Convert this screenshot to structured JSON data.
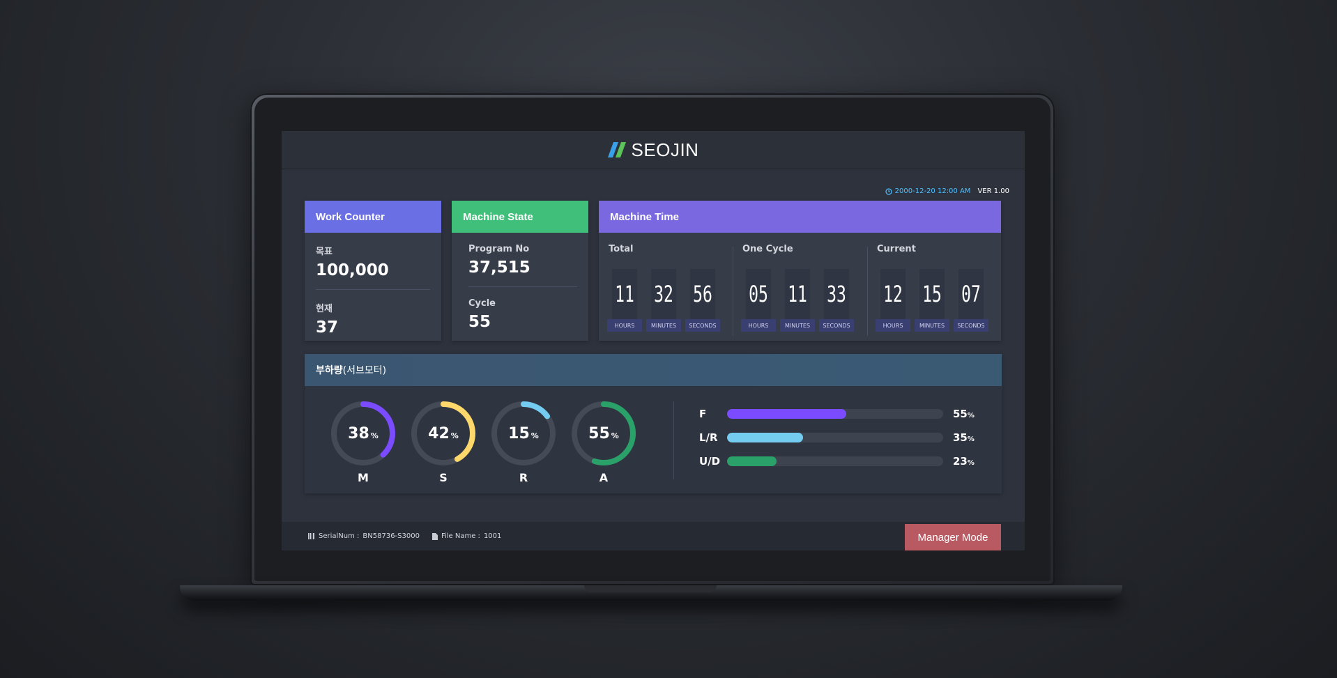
{
  "app": {
    "title": "SEOJIN"
  },
  "info": {
    "datetime": "2000-12-20  12:00 AM",
    "version": "VER 1.00"
  },
  "work_counter": {
    "title": "Work Counter",
    "target_label": "목표",
    "target_value": "100,000",
    "current_label": "현재",
    "current_value": "37"
  },
  "machine_state": {
    "title": "Machine State",
    "program_label": "Program No",
    "program_value": "37,515",
    "cycle_label": "Cycle",
    "cycle_value": "55"
  },
  "machine_time": {
    "title": "Machine Time",
    "groups": [
      {
        "label": "Total",
        "hours": "11",
        "minutes": "32",
        "seconds": "56"
      },
      {
        "label": "One Cycle",
        "hours": "05",
        "minutes": "11",
        "seconds": "33"
      },
      {
        "label": "Current",
        "hours": "12",
        "minutes": "15",
        "seconds": "07"
      }
    ],
    "units": {
      "hours": "HOURS",
      "minutes": "MINUTES",
      "seconds": "SECONDS"
    }
  },
  "load": {
    "title": "부하량",
    "subtitle": "(서브모터)",
    "gauges": [
      {
        "name": "M",
        "value": "38",
        "percent": 38,
        "color": "#7b4cff"
      },
      {
        "name": "S",
        "value": "42",
        "percent": 42,
        "color": "#ffd86b"
      },
      {
        "name": "R",
        "value": "15",
        "percent": 15,
        "color": "#74cdf0"
      },
      {
        "name": "A",
        "value": "55",
        "percent": 55,
        "color": "#2aa168"
      }
    ],
    "bars": [
      {
        "name": "F",
        "value": "55",
        "percent": 55,
        "color": "#7b4cff"
      },
      {
        "name": "L/R",
        "value": "35",
        "percent": 35,
        "color": "#74cdf0"
      },
      {
        "name": "U/D",
        "value": "23",
        "percent": 23,
        "color": "#2aa168"
      }
    ],
    "pct_symbol": "%"
  },
  "footer": {
    "serial_label": "SerialNum :",
    "serial_value": "BN58736-S3000",
    "file_label": "File Name :",
    "file_value": "1001",
    "manager_button": "Manager Mode"
  },
  "colors": {
    "work_counter_head": "#6a6fe4",
    "machine_state_head": "#3fbf7a",
    "machine_time_head": "#7a68e0",
    "manager_button": "#b95a62",
    "accent_cyan": "#4fc0ff"
  }
}
